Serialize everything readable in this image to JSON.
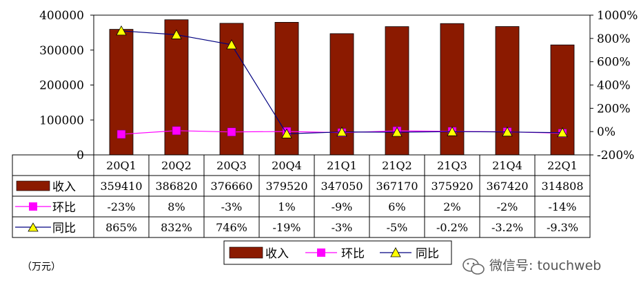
{
  "chart_data": {
    "type": "bar",
    "categories": [
      "20Q1",
      "20Q2",
      "20Q3",
      "20Q4",
      "21Q1",
      "21Q2",
      "21Q3",
      "21Q4",
      "22Q1"
    ],
    "series": [
      {
        "name": "收入",
        "kind": "bar",
        "axis": "left",
        "color": "#8B1A00",
        "values": [
          359410,
          386820,
          376660,
          379520,
          347050,
          367170,
          375920,
          367420,
          314808
        ],
        "labels": [
          "359410",
          "386820",
          "376660",
          "379520",
          "347050",
          "367170",
          "375920",
          "367420",
          "314808"
        ]
      },
      {
        "name": "环比",
        "kind": "line",
        "axis": "right",
        "color": "#FF00FF",
        "marker": "square",
        "values": [
          -23,
          8,
          -3,
          1,
          -9,
          6,
          2,
          -2,
          -14
        ],
        "labels": [
          "-23%",
          "8%",
          "-3%",
          "1%",
          "-9%",
          "6%",
          "2%",
          "-2%",
          "-14%"
        ]
      },
      {
        "name": "同比",
        "kind": "line",
        "axis": "right",
        "color": "#FFFF00",
        "line_color": "#000080",
        "marker": "triangle",
        "values": [
          865,
          832,
          746,
          -19,
          -3,
          -5,
          -0.2,
          -3.2,
          -9.3
        ],
        "labels": [
          "865%",
          "832%",
          "746%",
          "-19%",
          "-3%",
          "-5%",
          "-0.2%",
          "-3.2%",
          "-9.3%"
        ]
      }
    ],
    "y_left": {
      "ylim": [
        0,
        400000
      ],
      "ticks": [
        "0",
        "100000",
        "200000",
        "300000",
        "400000"
      ]
    },
    "y_right": {
      "ylim": [
        -200,
        1000
      ],
      "ticks": [
        "-200%",
        "0%",
        "200%",
        "400%",
        "600%",
        "800%",
        "1000%"
      ]
    },
    "legend": {
      "placement": "bottom",
      "entries": [
        "收入",
        "环比",
        "同比"
      ]
    },
    "unit_note": "（万元）",
    "watermark": "微信号: touchweb",
    "grid": false
  }
}
